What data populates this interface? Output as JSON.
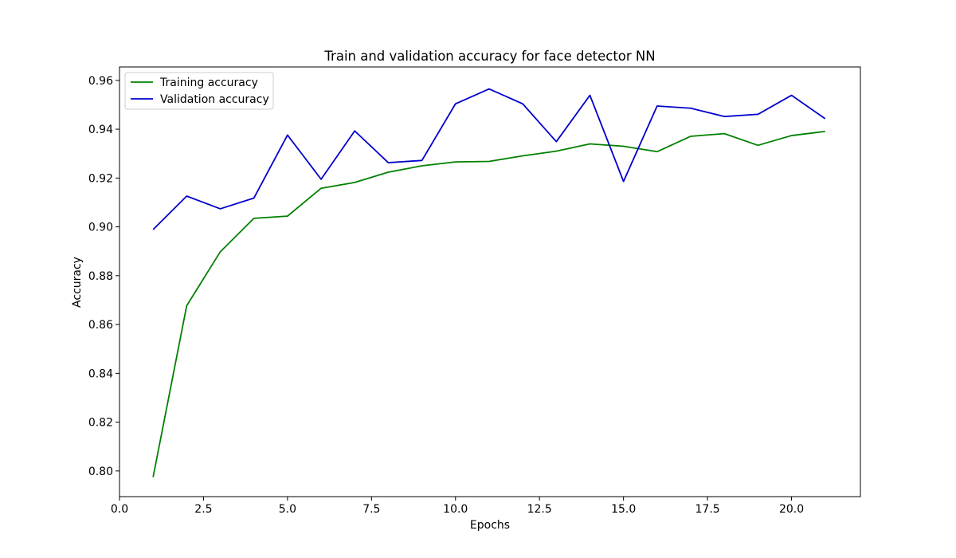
{
  "chart_data": {
    "type": "line",
    "title": "Train and validation accuracy for face detector NN",
    "xlabel": "Epochs",
    "ylabel": "Accuracy",
    "xlim": [
      0,
      22.05
    ],
    "ylim": [
      0.7895,
      0.9655
    ],
    "xticks": [
      0,
      2.5,
      5,
      7.5,
      10,
      12.5,
      15,
      17.5,
      20
    ],
    "xtick_labels": [
      "0.0",
      "2.5",
      "5.0",
      "7.5",
      "10.0",
      "12.5",
      "15.0",
      "17.5",
      "20.0"
    ],
    "yticks": [
      0.8,
      0.82,
      0.84,
      0.86,
      0.88,
      0.9,
      0.92,
      0.94,
      0.96
    ],
    "ytick_labels": [
      "0.80",
      "0.82",
      "0.84",
      "0.86",
      "0.88",
      "0.90",
      "0.92",
      "0.94",
      "0.96"
    ],
    "grid": false,
    "legend_position": "top-left",
    "x": [
      1,
      2,
      3,
      4,
      5,
      6,
      7,
      8,
      9,
      10,
      11,
      12,
      13,
      14,
      15,
      16,
      17,
      18,
      19,
      20,
      21
    ],
    "series": [
      {
        "name": "Training accuracy",
        "color": "#008000",
        "values": [
          0.7975,
          0.8677,
          0.8898,
          0.9035,
          0.9044,
          0.9158,
          0.9182,
          0.9224,
          0.925,
          0.9266,
          0.9268,
          0.9291,
          0.931,
          0.934,
          0.933,
          0.9308,
          0.9371,
          0.9382,
          0.9334,
          0.9374,
          0.9391
        ]
      },
      {
        "name": "Validation accuracy",
        "color": "#0000cc",
        "values": [
          0.8989,
          0.9126,
          0.9074,
          0.9118,
          0.9376,
          0.9195,
          0.9393,
          0.9263,
          0.9272,
          0.9504,
          0.9565,
          0.9504,
          0.9349,
          0.9539,
          0.9186,
          0.9495,
          0.9486,
          0.9452,
          0.9461,
          0.9539,
          0.9443
        ]
      }
    ]
  }
}
